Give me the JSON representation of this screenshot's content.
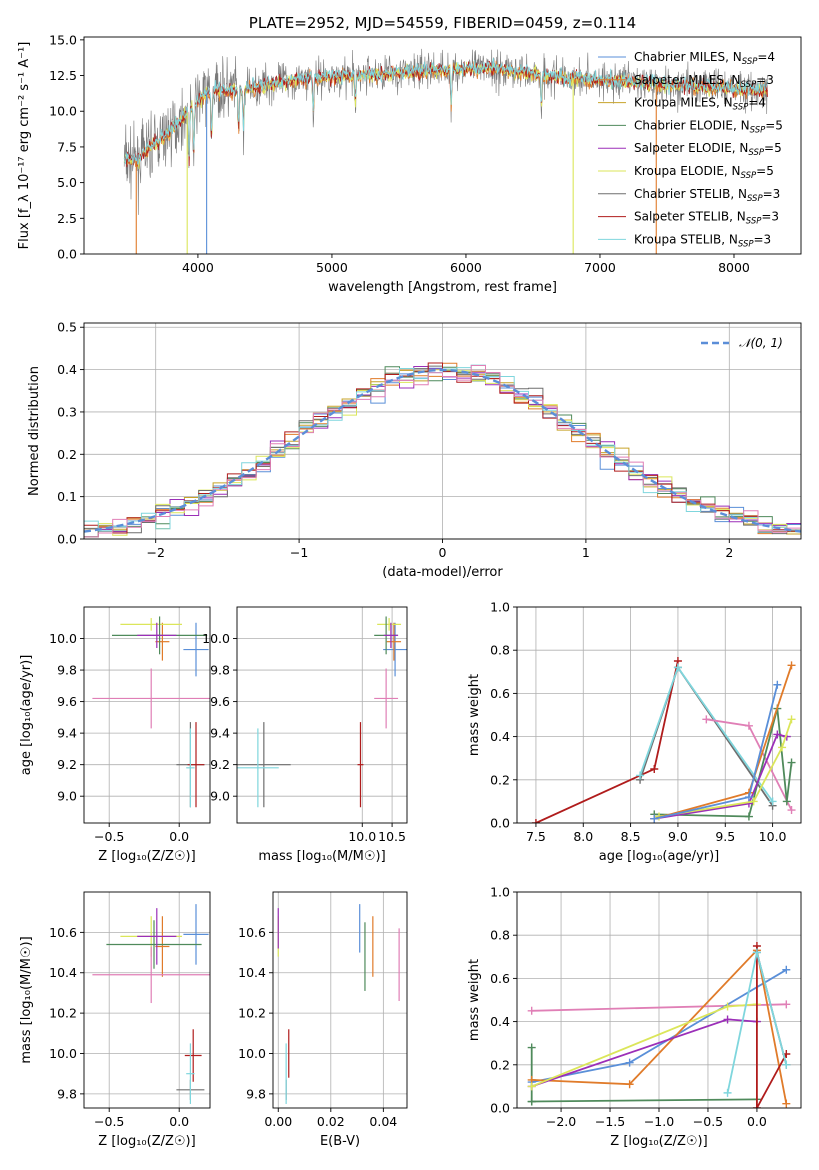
{
  "colors": {
    "chabrier_miles": "#5a8fd8",
    "salpeter_miles": "#e07b2a",
    "kroupa_miles": "#c7a32a",
    "chabrier_elodie": "#4f8a5b",
    "salpeter_elodie": "#9b2fb8",
    "kroupa_elodie": "#dbe65a",
    "chabrier_stelib": "#6e6e6e",
    "salpeter_stelib": "#b01c1c",
    "kroupa_stelib": "#7fd6dd",
    "pink": "#e07fb6",
    "gaussian": "#5b8ed8"
  },
  "chart_data": [
    {
      "id": "spectrum",
      "type": "line",
      "title": "PLATE=2952, MJD=54559, FIBERID=0459, z=0.114",
      "xlabel": "wavelength [Angstrom, rest frame]",
      "ylabel": "Flux [f_λ 10⁻¹⁷ erg cm⁻² s⁻¹ A⁻¹]",
      "xlim": [
        3150,
        8500
      ],
      "ylim": [
        0,
        15.2
      ],
      "xticks": [
        "4000",
        "5000",
        "6000",
        "7000",
        "8000"
      ],
      "yticks": [
        "0.0",
        "2.5",
        "5.0",
        "7.5",
        "10.0",
        "12.5",
        "15.0"
      ],
      "legend": [
        {
          "text": "Chabrier MILES, N",
          "sub": "SSP",
          "eq": "=4",
          "color": "chabrier_miles"
        },
        {
          "text": "Salpeter MILES, N",
          "sub": "SSP",
          "eq": "=3",
          "color": "salpeter_miles"
        },
        {
          "text": "Kroupa MILES, N",
          "sub": "SSP",
          "eq": "=4",
          "color": "kroupa_miles"
        },
        {
          "text": "Chabrier ELODIE, N",
          "sub": "SSP",
          "eq": "=5",
          "color": "chabrier_elodie"
        },
        {
          "text": "Salpeter ELODIE, N",
          "sub": "SSP",
          "eq": "=5",
          "color": "salpeter_elodie"
        },
        {
          "text": "Kroupa ELODIE, N",
          "sub": "SSP",
          "eq": "=5",
          "color": "kroupa_elodie"
        },
        {
          "text": "Chabrier STELIB, N",
          "sub": "SSP",
          "eq": "=3",
          "color": "chabrier_stelib"
        },
        {
          "text": "Salpeter STELIB, N",
          "sub": "SSP",
          "eq": "=3",
          "color": "salpeter_stelib"
        },
        {
          "text": "Kroupa STELIB, N",
          "sub": "SSP",
          "eq": "=3",
          "color": "kroupa_stelib"
        }
      ],
      "continuum": [
        [
          3450,
          6.6
        ],
        [
          3550,
          6.5
        ],
        [
          3650,
          7.6
        ],
        [
          3750,
          8.2
        ],
        [
          3850,
          9.2
        ],
        [
          3950,
          10.2
        ],
        [
          4050,
          11.2
        ],
        [
          4150,
          11.5
        ],
        [
          4300,
          11.4
        ],
        [
          4500,
          11.9
        ],
        [
          4800,
          12.3
        ],
        [
          5000,
          12.4
        ],
        [
          5200,
          12.5
        ],
        [
          5500,
          12.7
        ],
        [
          5800,
          12.9
        ],
        [
          6200,
          13.0
        ],
        [
          6600,
          12.5
        ],
        [
          7000,
          12.2
        ],
        [
          7500,
          11.9
        ],
        [
          8000,
          11.6
        ],
        [
          8250,
          11.4
        ]
      ],
      "model_dropouts": [
        {
          "x": 3540,
          "color": "salpeter_miles"
        },
        {
          "x": 3920,
          "color": "kroupa_elodie"
        },
        {
          "x": 4065,
          "color": "chabrier_miles"
        },
        {
          "x": 6800,
          "color": "kroupa_elodie"
        },
        {
          "x": 7420,
          "color": "salpeter_miles"
        }
      ]
    },
    {
      "id": "residuals",
      "type": "histogram",
      "xlabel": "(data-model)/error",
      "ylabel": "Normed distribution",
      "xlim": [
        -2.5,
        2.5
      ],
      "ylim": [
        0,
        0.51
      ],
      "xticks": [
        "−2",
        "−1",
        "0",
        "1",
        "2"
      ],
      "yticks": [
        "0.0",
        "0.1",
        "0.2",
        "0.3",
        "0.4",
        "0.5"
      ],
      "bin_width": 0.1,
      "legend": [
        "𝒩(0, 1)"
      ],
      "series_colors": [
        "chabrier_miles",
        "salpeter_miles",
        "kroupa_miles",
        "chabrier_elodie",
        "salpeter_elodie",
        "kroupa_elodie",
        "chabrier_stelib",
        "salpeter_stelib",
        "kroupa_stelib",
        "pink"
      ]
    },
    {
      "id": "age_z",
      "type": "scatter",
      "xlabel": "Z [log₁₀(Z/Z☉)]",
      "ylabel": "age  [log₁₀(age/yr)]",
      "xlim": [
        -0.68,
        0.22
      ],
      "ylim": [
        8.83,
        10.2
      ],
      "xticks": [
        "−0.5",
        "0.0"
      ],
      "yticks": [
        "9.0",
        "9.2",
        "9.4",
        "9.6",
        "9.8",
        "10.0"
      ],
      "points": [
        {
          "x": 0.12,
          "y": 9.93,
          "xerr": 0.09,
          "yerr": 0.17,
          "color": "chabrier_miles"
        },
        {
          "x": -0.12,
          "y": 9.98,
          "xerr": 0.05,
          "yerr": 0.12,
          "color": "salpeter_miles"
        },
        {
          "x": -0.2,
          "y": 10.09,
          "xerr": 0.22,
          "yerr": 0.04,
          "color": "kroupa_elodie"
        },
        {
          "x": -0.14,
          "y": 10.02,
          "xerr": 0.34,
          "yerr": 0.12,
          "color": "chabrier_elodie"
        },
        {
          "x": -0.16,
          "y": 10.02,
          "xerr": 0.14,
          "yerr": 0.08,
          "color": "salpeter_elodie"
        },
        {
          "x": -0.2,
          "y": 9.62,
          "xerr": 0.42,
          "yerr": 0.19,
          "color": "pink"
        },
        {
          "x": 0.08,
          "y": 9.2,
          "xerr": 0.1,
          "yerr": 0.27,
          "color": "chabrier_stelib"
        },
        {
          "x": 0.12,
          "y": 9.2,
          "xerr": 0.06,
          "yerr": 0.27,
          "color": "salpeter_stelib"
        },
        {
          "x": 0.08,
          "y": 9.18,
          "xerr": 0.03,
          "yerr": 0.25,
          "color": "kroupa_stelib"
        }
      ]
    },
    {
      "id": "age_mass",
      "type": "scatter",
      "xlabel": "mass [log₁₀(M/M☉)]",
      "ylabel": "",
      "xlim": [
        7.9,
        10.75
      ],
      "ylim": [
        8.83,
        10.2
      ],
      "xticks": [
        "10.0",
        "10.5"
      ],
      "yticks": [
        "9.0",
        "9.2",
        "9.4",
        "9.6",
        "9.8",
        "10.0"
      ],
      "points": [
        {
          "x": 10.55,
          "y": 9.93,
          "xerr": 0.2,
          "yerr": 0.17,
          "color": "chabrier_miles"
        },
        {
          "x": 10.53,
          "y": 9.98,
          "xerr": 0.12,
          "yerr": 0.12,
          "color": "salpeter_miles"
        },
        {
          "x": 10.45,
          "y": 10.09,
          "xerr": 0.2,
          "yerr": 0.04,
          "color": "kroupa_elodie"
        },
        {
          "x": 10.4,
          "y": 10.02,
          "xerr": 0.2,
          "yerr": 0.12,
          "color": "chabrier_elodie"
        },
        {
          "x": 10.48,
          "y": 10.02,
          "xerr": 0.12,
          "yerr": 0.08,
          "color": "salpeter_elodie"
        },
        {
          "x": 10.4,
          "y": 9.62,
          "xerr": 0.2,
          "yerr": 0.19,
          "color": "pink"
        },
        {
          "x": 8.35,
          "y": 9.2,
          "xerr": 0.45,
          "yerr": 0.27,
          "color": "chabrier_stelib"
        },
        {
          "x": 9.97,
          "y": 9.2,
          "xerr": 0.05,
          "yerr": 0.27,
          "color": "salpeter_stelib"
        },
        {
          "x": 8.25,
          "y": 9.18,
          "xerr": 0.35,
          "yerr": 0.25,
          "color": "kroupa_stelib"
        }
      ]
    },
    {
      "id": "weight_age",
      "type": "line",
      "xlabel": "age  [log₁₀(age/yr)]",
      "ylabel": "mass weight",
      "xlim": [
        7.3,
        10.3
      ],
      "ylim": [
        0,
        1
      ],
      "xticks": [
        "7.5",
        "8.0",
        "8.5",
        "9.0",
        "9.5",
        "10.0"
      ],
      "yticks": [
        "0.0",
        "0.2",
        "0.4",
        "0.6",
        "0.8",
        "1.0"
      ],
      "series": [
        {
          "color": "salpeter_stelib",
          "x": [
            7.5,
            8.75,
            9.0
          ],
          "y": [
            0.0,
            0.25,
            0.75
          ]
        },
        {
          "color": "chabrier_stelib",
          "x": [
            8.6,
            9.0,
            10.0
          ],
          "y": [
            0.2,
            0.72,
            0.08
          ]
        },
        {
          "color": "kroupa_stelib",
          "x": [
            8.6,
            9.0,
            10.0
          ],
          "y": [
            0.22,
            0.72,
            0.1
          ]
        },
        {
          "color": "pink",
          "x": [
            9.3,
            9.75,
            10.2
          ],
          "y": [
            0.48,
            0.45,
            0.06
          ]
        },
        {
          "color": "chabrier_elodie",
          "x": [
            8.75,
            9.75,
            10.05,
            10.15,
            10.2
          ],
          "y": [
            0.04,
            0.03,
            0.53,
            0.1,
            0.28
          ]
        },
        {
          "color": "salpeter_elodie",
          "x": [
            8.75,
            9.75,
            10.05,
            10.15
          ],
          "y": [
            0.02,
            0.09,
            0.41,
            0.4
          ]
        },
        {
          "color": "kroupa_elodie",
          "x": [
            8.8,
            9.8,
            10.1,
            10.2
          ],
          "y": [
            0.03,
            0.1,
            0.35,
            0.48
          ]
        },
        {
          "color": "salpeter_miles",
          "x": [
            8.75,
            9.75,
            10.2
          ],
          "y": [
            0.02,
            0.14,
            0.73
          ]
        },
        {
          "color": "chabrier_miles",
          "x": [
            8.75,
            9.75,
            10.05
          ],
          "y": [
            0.02,
            0.12,
            0.64
          ]
        }
      ]
    },
    {
      "id": "mass_z",
      "type": "scatter",
      "xlabel": "Z [log₁₀(Z/Z☉)]",
      "ylabel": "mass [log₁₀(M/M☉)]",
      "xlim": [
        -0.68,
        0.22
      ],
      "ylim": [
        9.73,
        10.8
      ],
      "xticks": [
        "−0.5",
        "0.0"
      ],
      "yticks": [
        "9.8",
        "10.0",
        "10.2",
        "10.4",
        "10.6"
      ],
      "points": [
        {
          "x": 0.12,
          "y": 10.59,
          "xerr": 0.09,
          "yerr": 0.15,
          "color": "chabrier_miles"
        },
        {
          "x": -0.12,
          "y": 10.53,
          "xerr": 0.05,
          "yerr": 0.15,
          "color": "salpeter_miles"
        },
        {
          "x": -0.2,
          "y": 10.58,
          "xerr": 0.22,
          "yerr": 0.1,
          "color": "kroupa_elodie"
        },
        {
          "x": -0.18,
          "y": 10.54,
          "xerr": 0.34,
          "yerr": 0.12,
          "color": "chabrier_elodie"
        },
        {
          "x": -0.16,
          "y": 10.58,
          "xerr": 0.14,
          "yerr": 0.14,
          "color": "salpeter_elodie"
        },
        {
          "x": -0.2,
          "y": 10.39,
          "xerr": 0.42,
          "yerr": 0.14,
          "color": "pink"
        },
        {
          "x": 0.08,
          "y": 9.82,
          "xerr": 0.1,
          "yerr": 0.05,
          "color": "chabrier_stelib"
        },
        {
          "x": 0.1,
          "y": 9.99,
          "xerr": 0.06,
          "yerr": 0.13,
          "color": "salpeter_stelib"
        },
        {
          "x": 0.08,
          "y": 9.9,
          "xerr": 0.03,
          "yerr": 0.15,
          "color": "kroupa_stelib"
        }
      ]
    },
    {
      "id": "mass_ebv",
      "type": "scatter",
      "xlabel": "E(B-V)",
      "ylabel": "",
      "xlim": [
        -0.002,
        0.049
      ],
      "ylim": [
        9.73,
        10.8
      ],
      "xticks": [
        "0.00",
        "0.02",
        "0.04"
      ],
      "yticks": [
        "9.8",
        "10.0",
        "10.2",
        "10.4",
        "10.6"
      ],
      "points": [
        {
          "x": 0.031,
          "y": 10.62,
          "xerr": 0,
          "yerr": 0.12,
          "color": "chabrier_miles"
        },
        {
          "x": 0.036,
          "y": 10.53,
          "xerr": 0,
          "yerr": 0.15,
          "color": "salpeter_miles"
        },
        {
          "x": 0.0,
          "y": 10.58,
          "xerr": 0,
          "yerr": 0.1,
          "color": "kroupa_elodie"
        },
        {
          "x": 0.033,
          "y": 10.48,
          "xerr": 0,
          "yerr": 0.17,
          "color": "chabrier_elodie"
        },
        {
          "x": 0.0,
          "y": 10.62,
          "xerr": 0,
          "yerr": 0.1,
          "color": "salpeter_elodie"
        },
        {
          "x": 0.046,
          "y": 10.44,
          "xerr": 0,
          "yerr": 0.18,
          "color": "pink"
        },
        {
          "x": 0.003,
          "y": 9.82,
          "xerr": 0,
          "yerr": 0.05,
          "color": "chabrier_stelib"
        },
        {
          "x": 0.004,
          "y": 10.0,
          "xerr": 0,
          "yerr": 0.12,
          "color": "salpeter_stelib"
        },
        {
          "x": 0.003,
          "y": 9.9,
          "xerr": 0,
          "yerr": 0.15,
          "color": "kroupa_stelib"
        }
      ]
    },
    {
      "id": "weight_z",
      "type": "line",
      "xlabel": "Z [log₁₀(Z/Z☉)]",
      "ylabel": "mass weight",
      "xlim": [
        -2.45,
        0.45
      ],
      "ylim": [
        0,
        1
      ],
      "xticks": [
        "−2.0",
        "−1.5",
        "−1.0",
        "−0.5",
        "0.0"
      ],
      "yticks": [
        "0.0",
        "0.2",
        "0.4",
        "0.6",
        "0.8",
        "1.0"
      ],
      "series": [
        {
          "color": "pink",
          "x": [
            -2.3,
            0.3
          ],
          "y": [
            0.45,
            0.48
          ]
        },
        {
          "color": "chabrier_elodie",
          "x": [
            -2.3,
            0.0
          ],
          "y": [
            0.03,
            0.04
          ]
        },
        {
          "color": "chabrier_elodie",
          "x": [
            -2.3,
            -2.3
          ],
          "y": [
            0.03,
            0.28
          ]
        },
        {
          "color": "chabrier_miles",
          "x": [
            -2.3,
            -1.3,
            0.3
          ],
          "y": [
            0.12,
            0.21,
            0.64
          ]
        },
        {
          "color": "salpeter_miles",
          "x": [
            -2.3,
            -1.3,
            0.0,
            0.3
          ],
          "y": [
            0.13,
            0.11,
            0.73,
            0.02
          ]
        },
        {
          "color": "salpeter_elodie",
          "x": [
            -2.3,
            -0.3,
            0.0
          ],
          "y": [
            0.1,
            0.41,
            0.4
          ]
        },
        {
          "color": "kroupa_elodie",
          "x": [
            -2.3,
            -0.3,
            0.0
          ],
          "y": [
            0.1,
            0.47,
            0.48
          ]
        },
        {
          "color": "salpeter_stelib",
          "x": [
            0.0,
            0.0,
            0.3
          ],
          "y": [
            0.75,
            0.0,
            0.25
          ]
        },
        {
          "color": "chabrier_stelib",
          "x": [
            0.0,
            0.3
          ],
          "y": [
            0.72,
            0.2
          ]
        },
        {
          "color": "kroupa_stelib",
          "x": [
            -0.3,
            0.0,
            0.3
          ],
          "y": [
            0.07,
            0.72,
            0.2
          ]
        }
      ]
    }
  ]
}
